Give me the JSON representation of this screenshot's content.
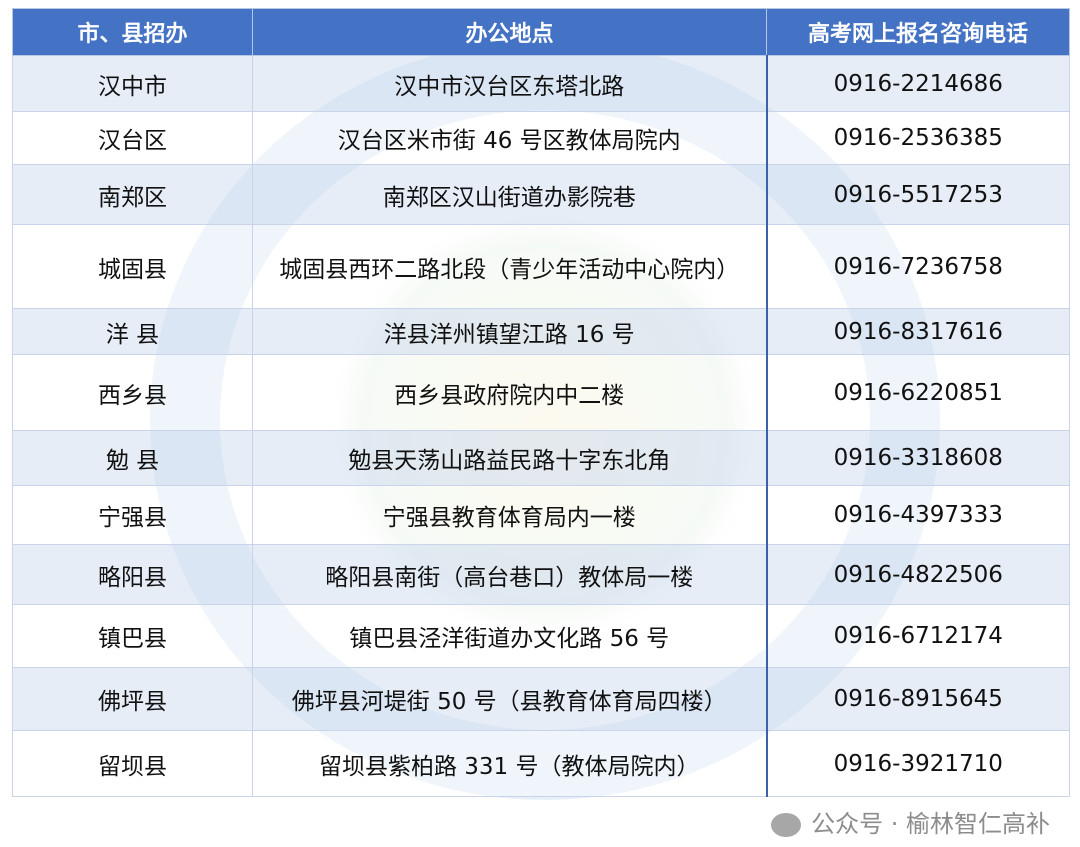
{
  "table": {
    "headers": [
      "市、县招办",
      "办公地点",
      "高考网上报名咨询电话"
    ],
    "rows": [
      [
        "汉中市",
        "汉中市汉台区东塔北路",
        "0916-2214686"
      ],
      [
        "汉台区",
        "汉台区米市街 46 号区教体局院内",
        "0916-2536385"
      ],
      [
        "南郑区",
        "南郑区汉山街道办影院巷",
        "0916-5517253"
      ],
      [
        "城固县",
        "城固县西环二路北段（青少年活动中心院内）",
        "0916-7236758"
      ],
      [
        "洋 县",
        "洋县洋州镇望江路 16 号",
        "0916-8317616"
      ],
      [
        "西乡县",
        "西乡县政府院内中二楼",
        "0916-6220851"
      ],
      [
        "勉 县",
        "勉县天荡山路益民路十字东北角",
        "0916-3318608"
      ],
      [
        "宁强县",
        "宁强县教育体育局内一楼",
        "0916-4397333"
      ],
      [
        "略阳县",
        "略阳县南街（高台巷口）教体局一楼",
        "0916-4822506"
      ],
      [
        "镇巴县",
        "镇巴县泾洋街道办文化路 56 号",
        "0916-6712174"
      ],
      [
        "佛坪县",
        "佛坪县河堤街 50 号（县教育体育局四楼）",
        "0916-8915645"
      ],
      [
        "留坝县",
        "留坝县紫柏路 331 号（教体局院内）",
        "0916-3921710"
      ]
    ]
  },
  "watermark": {
    "text": "公众号 · 榆林智仁高补",
    "icon": "wechat-icon"
  },
  "colors": {
    "header": "#4472C4",
    "alt_row": "#D2DEF0"
  }
}
